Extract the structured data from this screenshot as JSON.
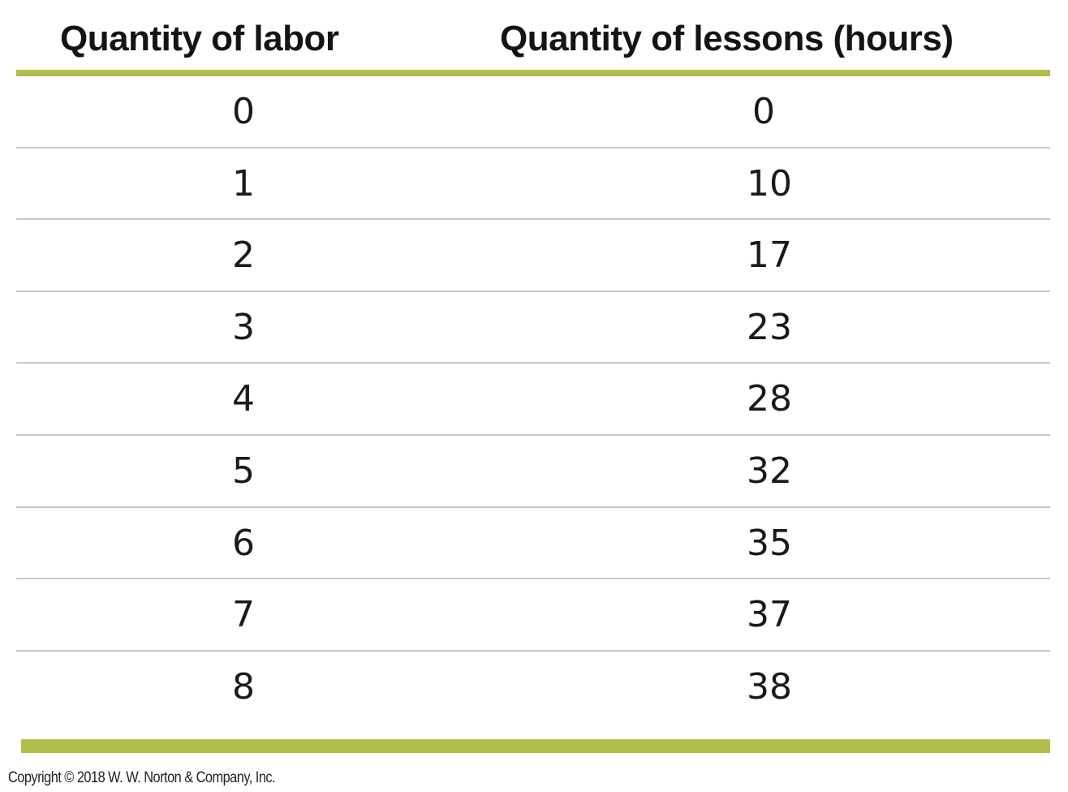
{
  "table": {
    "headers": {
      "labor": "Quantity of labor",
      "lessons": "Quantity of lessons (hours)"
    },
    "rows": [
      {
        "labor": "0",
        "lessons": "0"
      },
      {
        "labor": "1",
        "lessons": "10"
      },
      {
        "labor": "2",
        "lessons": "17"
      },
      {
        "labor": "3",
        "lessons": "23"
      },
      {
        "labor": "4",
        "lessons": "28"
      },
      {
        "labor": "5",
        "lessons": "32"
      },
      {
        "labor": "6",
        "lessons": "35"
      },
      {
        "labor": "7",
        "lessons": "37"
      },
      {
        "labor": "8",
        "lessons": "38"
      }
    ]
  },
  "footer": {
    "copyright": "Copyright © 2018 W. W. Norton & Company, Inc."
  },
  "colors": {
    "accent_rule": "#b3be4a",
    "row_divider": "#c8c8c8"
  }
}
